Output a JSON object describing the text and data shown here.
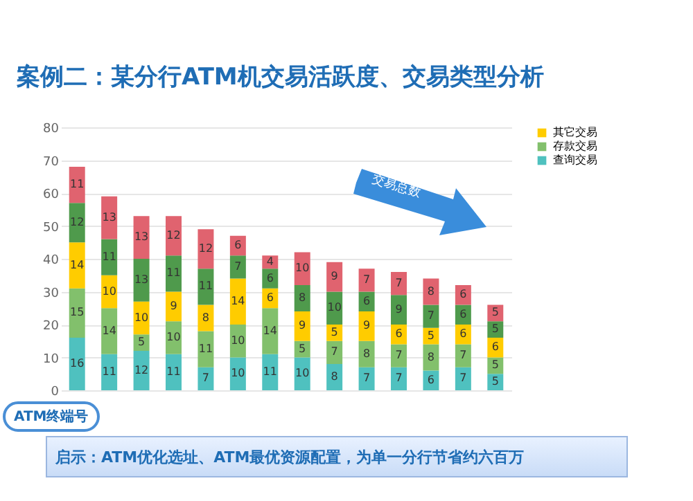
{
  "chart_data": {
    "type": "bar",
    "stacked": true,
    "title": "案例二：某分行ATM机交易活跃度、交易类型分析",
    "annotations": [
      "交易总数",
      "ATM终端号",
      "启示：ATM优化选址、ATM最优资源配置，为单一分行节省约六百万"
    ],
    "categories": [
      null,
      null,
      null,
      null,
      null,
      null,
      null,
      null,
      null,
      null,
      null,
      null,
      null,
      null
    ],
    "series": [
      {
        "name": "查询交易",
        "color": "#4fc1bf",
        "values": [
          16,
          11,
          12,
          11,
          7,
          10,
          11,
          10,
          8,
          7,
          7,
          6,
          7,
          5
        ]
      },
      {
        "name": "存款交易",
        "color": "#82c06c",
        "values": [
          15,
          14,
          5,
          10,
          11,
          10,
          14,
          5,
          7,
          8,
          7,
          8,
          7,
          5
        ]
      },
      {
        "name": "其它交易",
        "color": "#ffcc00",
        "values": [
          14,
          10,
          10,
          9,
          8,
          14,
          6,
          9,
          5,
          9,
          6,
          5,
          6,
          6
        ]
      },
      {
        "color": "#4f9a4c",
        "values": [
          12,
          11,
          13,
          11,
          11,
          7,
          6,
          8,
          10,
          6,
          9,
          7,
          6,
          5
        ]
      },
      {
        "color": "#e0636f",
        "values": [
          11,
          13,
          13,
          12,
          12,
          6,
          4,
          10,
          9,
          7,
          7,
          8,
          6,
          5
        ]
      }
    ],
    "ylim": [
      0,
      80
    ],
    "yticks": [
      0,
      10,
      20,
      30,
      40,
      50,
      60,
      70,
      80
    ],
    "grid": "y",
    "legend": "right",
    "data_labels": true
  }
}
